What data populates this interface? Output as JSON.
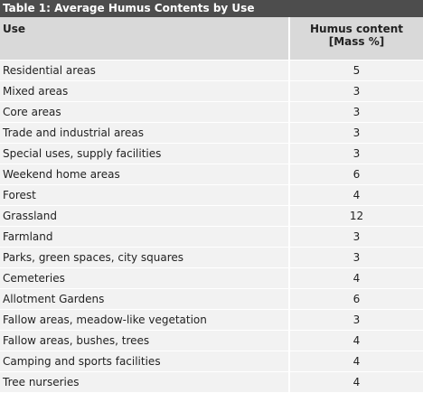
{
  "table": {
    "caption": "Table 1: Average Humus Contents by Use",
    "header": {
      "use": "Use",
      "humus_line1": "Humus content",
      "humus_line2": "[Mass %]"
    },
    "rows": [
      {
        "use": "Residential areas",
        "value": "5"
      },
      {
        "use": "Mixed areas",
        "value": "3"
      },
      {
        "use": "Core areas",
        "value": "3"
      },
      {
        "use": "Trade and industrial areas",
        "value": "3"
      },
      {
        "use": "Special uses, supply facilities",
        "value": "3"
      },
      {
        "use": "Weekend home areas",
        "value": "6"
      },
      {
        "use": "Forest",
        "value": "4"
      },
      {
        "use": "Grassland",
        "value": "12"
      },
      {
        "use": "Farmland",
        "value": "3"
      },
      {
        "use": "Parks, green spaces, city squares",
        "value": "3"
      },
      {
        "use": "Cemeteries",
        "value": "4"
      },
      {
        "use": "Allotment Gardens",
        "value": "6"
      },
      {
        "use": "Fallow areas, meadow-like vegetation",
        "value": "3"
      },
      {
        "use": "Fallow areas, bushes, trees",
        "value": "4"
      },
      {
        "use": "Camping and sports facilities",
        "value": "4"
      },
      {
        "use": "Tree nurseries",
        "value": "4"
      }
    ]
  }
}
